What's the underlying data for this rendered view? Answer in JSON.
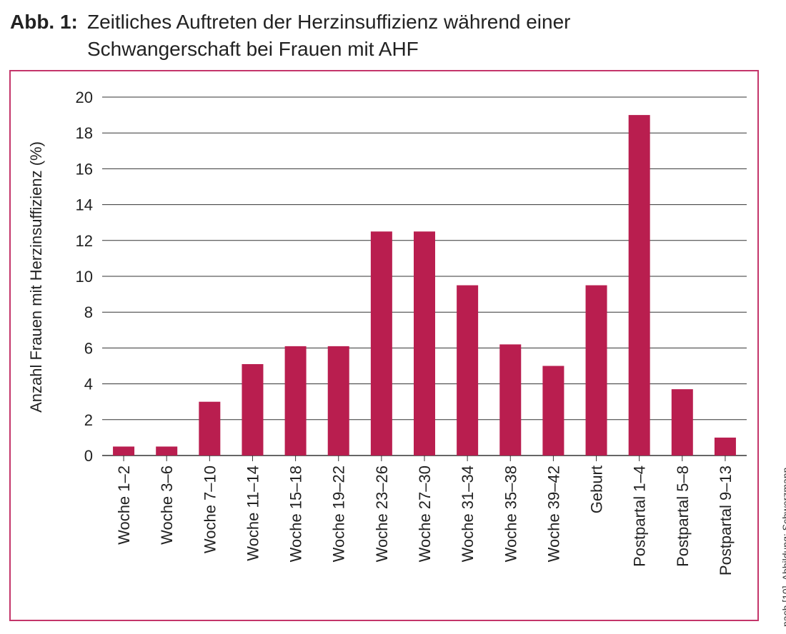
{
  "caption": {
    "label": "Abb. 1:",
    "line1": "Zeitliches Auftreten der Herzinsuffizienz während einer",
    "line2": "Schwangerschaft bei Frauen mit AHF"
  },
  "credit": "nach [10], Abbildung: Schwerzmann",
  "colors": {
    "bar": "#b91e4f",
    "frame": "#c4356a",
    "grid": "#333333"
  },
  "chart_data": {
    "type": "bar",
    "title": "Zeitliches Auftreten der Herzinsuffizienz während einer Schwangerschaft bei Frauen mit AHF",
    "xlabel": "",
    "ylabel": "Anzahl Frauen mit Herzinsuffizienz (%)",
    "ylim": [
      0,
      20
    ],
    "yticks": [
      0,
      2,
      4,
      6,
      8,
      10,
      12,
      14,
      16,
      18,
      20
    ],
    "grid": true,
    "categories": [
      "Woche 1–2",
      "Woche 3–6",
      "Woche 7–10",
      "Woche 11–14",
      "Woche 15–18",
      "Woche 19–22",
      "Woche 23–26",
      "Woche 27–30",
      "Woche 31–34",
      "Woche 35–38",
      "Woche 39–42",
      "Geburt",
      "Postpartal 1–4",
      "Postpartal 5–8",
      "Postpartal 9–13"
    ],
    "values": [
      0.5,
      0.5,
      3.0,
      5.1,
      6.1,
      6.1,
      12.5,
      12.5,
      9.5,
      6.2,
      5.0,
      9.5,
      19.0,
      3.7,
      1.0
    ]
  }
}
